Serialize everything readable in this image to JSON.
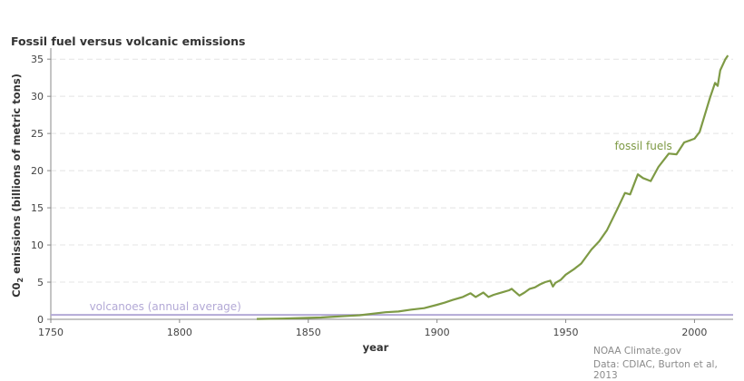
{
  "chart_data": {
    "type": "line",
    "title": "Fossil fuel versus volcanic emissions",
    "xlabel": "year",
    "ylabel": "C0",
    "ylabel_subscript": "2",
    "ylabel_rest": " emissions (billions of metric tons)",
    "xlim": [
      1750,
      2015
    ],
    "ylim": [
      0,
      36
    ],
    "x_ticks": [
      1750,
      1800,
      1850,
      1900,
      1950,
      2000
    ],
    "y_ticks": [
      0,
      5,
      10,
      15,
      20,
      25,
      30,
      35
    ],
    "grid": "horizontal dashed",
    "series": [
      {
        "name": "fossil fuels",
        "color": "#7e9a45",
        "x": [
          1830,
          1840,
          1850,
          1855,
          1860,
          1865,
          1870,
          1875,
          1880,
          1885,
          1890,
          1895,
          1900,
          1903,
          1906,
          1910,
          1913,
          1915,
          1918,
          1920,
          1922,
          1924,
          1926,
          1928,
          1929,
          1930,
          1932,
          1934,
          1936,
          1938,
          1940,
          1942,
          1944,
          1945,
          1946,
          1948,
          1950,
          1953,
          1956,
          1960,
          1963,
          1966,
          1970,
          1973,
          1975,
          1978,
          1980,
          1983,
          1986,
          1990,
          1993,
          1996,
          2000,
          2002,
          2004,
          2006,
          2008,
          2009,
          2010,
          2012,
          2013
        ],
        "y": [
          0.05,
          0.1,
          0.2,
          0.25,
          0.35,
          0.45,
          0.55,
          0.75,
          0.95,
          1.05,
          1.3,
          1.5,
          1.95,
          2.25,
          2.6,
          3.0,
          3.5,
          3.0,
          3.6,
          3.0,
          3.3,
          3.5,
          3.7,
          3.9,
          4.1,
          3.8,
          3.2,
          3.6,
          4.1,
          4.3,
          4.7,
          5.0,
          5.2,
          4.4,
          4.9,
          5.3,
          6.0,
          6.7,
          7.5,
          9.4,
          10.5,
          12.0,
          14.8,
          17.0,
          16.8,
          19.5,
          19.0,
          18.6,
          20.5,
          22.3,
          22.2,
          23.8,
          24.3,
          25.2,
          27.5,
          29.8,
          31.8,
          31.4,
          33.5,
          35.0,
          35.5
        ]
      },
      {
        "name": "volcanoes (annual average)",
        "color": "#b3a9d6",
        "x": [
          1750,
          2015
        ],
        "y": [
          0.6,
          0.6
        ]
      }
    ]
  },
  "credits": {
    "line1": "NOAA Climate.gov",
    "line2": "Data: CDIAC, Burton et al, 2013"
  }
}
